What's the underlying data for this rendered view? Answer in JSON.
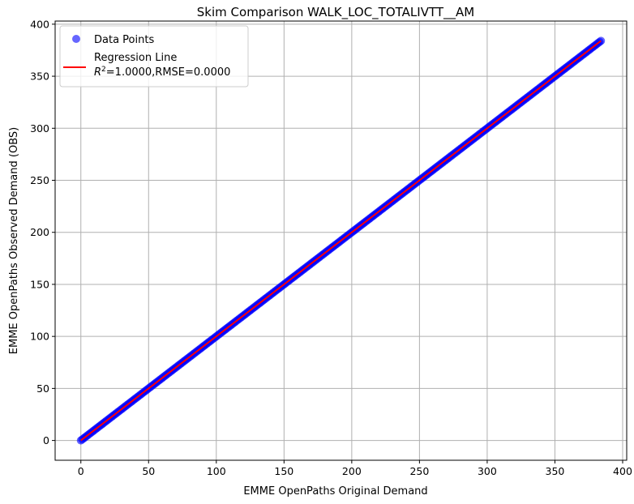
{
  "chart_data": {
    "type": "scatter",
    "title": "Skim Comparison WALK_LOC_TOTALIVTT__AM",
    "xlabel": "EMME OpenPaths Original Demand",
    "ylabel": "EMME OpenPaths Observed Demand (OBS)",
    "xlim": [
      -19,
      403
    ],
    "ylim": [
      -19,
      403
    ],
    "xticks": [
      0,
      50,
      100,
      150,
      200,
      250,
      300,
      350,
      400
    ],
    "yticks": [
      0,
      50,
      100,
      150,
      200,
      250,
      300,
      350,
      400
    ],
    "grid": true,
    "legend_position": "top-left",
    "series": [
      {
        "name": "Data Points",
        "kind": "scatter",
        "color": "#0000ff",
        "opacity": 0.6,
        "x_range": [
          0,
          384
        ],
        "note_relationship": "y equals x",
        "point_step": 1
      },
      {
        "name": "Regression Line",
        "kind": "line",
        "color": "#ff0000",
        "x": [
          0,
          384
        ],
        "y": [
          0,
          384
        ]
      }
    ],
    "legend": {
      "entries": [
        "Data Points",
        "Regression Line"
      ],
      "stats_prefix": "R",
      "stats_sup": "2",
      "stats_suffix": "=1.0000,RMSE=0.0000"
    }
  }
}
